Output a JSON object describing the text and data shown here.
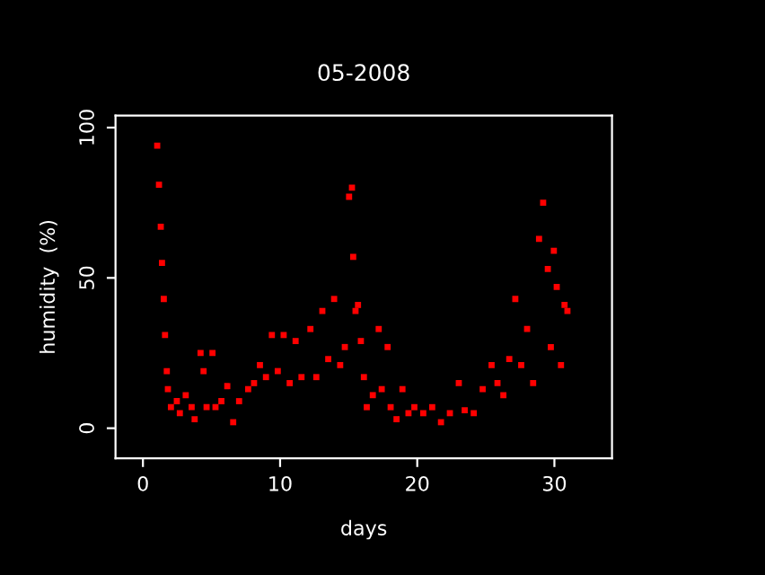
{
  "chart_data": {
    "type": "scatter",
    "title": "05-2008",
    "xlabel": "days",
    "ylabel": "humidity  (%)",
    "x": [
      1.04,
      1.17,
      1.3,
      1.39,
      1.52,
      1.61,
      1.74,
      1.82,
      2.04,
      2.47,
      2.69,
      3.12,
      3.55,
      3.77,
      4.2,
      4.42,
      4.64,
      5.07,
      5.29,
      5.72,
      6.15,
      6.58,
      7.01,
      7.67,
      8.1,
      8.53,
      8.97,
      9.4,
      9.83,
      10.26,
      10.7,
      11.13,
      11.56,
      12.21,
      12.64,
      13.08,
      13.51,
      13.94,
      14.38,
      14.72,
      15.03,
      15.24,
      15.33,
      15.5,
      15.68,
      15.89,
      16.11,
      16.32,
      16.76,
      17.19,
      17.41,
      17.84,
      18.06,
      18.49,
      18.92,
      19.36,
      19.79,
      20.44,
      21.09,
      21.73,
      22.38,
      23.03,
      23.46,
      24.12,
      24.77,
      25.42,
      25.85,
      26.28,
      26.71,
      27.15,
      27.58,
      28.01,
      28.45,
      28.88,
      29.18,
      29.52,
      29.74,
      29.96,
      30.17,
      30.48,
      30.74,
      30.95
    ],
    "series": [
      {
        "color": "#ff0000",
        "values": [
          94,
          81,
          67,
          55,
          43,
          31,
          19,
          13,
          7,
          9,
          5,
          11,
          7,
          3,
          25,
          19,
          7,
          25,
          7,
          9,
          14,
          2,
          9,
          13,
          15,
          21,
          17,
          31,
          19,
          31,
          15,
          29,
          17,
          33,
          17,
          39,
          23,
          43,
          21,
          27,
          77,
          80,
          57,
          39,
          41,
          29,
          17,
          7,
          11,
          33,
          13,
          27,
          7,
          3,
          13,
          5,
          7,
          5,
          7,
          2,
          5,
          15,
          6,
          5,
          13,
          21,
          15,
          11,
          23,
          43,
          21,
          33,
          15,
          63,
          75,
          53,
          27,
          59,
          47,
          21,
          41,
          39
        ]
      }
    ],
    "marker": "square",
    "xlim": [
      -2,
      34.2
    ],
    "ylim": [
      -10,
      104
    ],
    "xticks": [
      0,
      10,
      20,
      30
    ],
    "yticks": [
      0,
      50,
      100
    ],
    "grid": false,
    "legend": false
  }
}
